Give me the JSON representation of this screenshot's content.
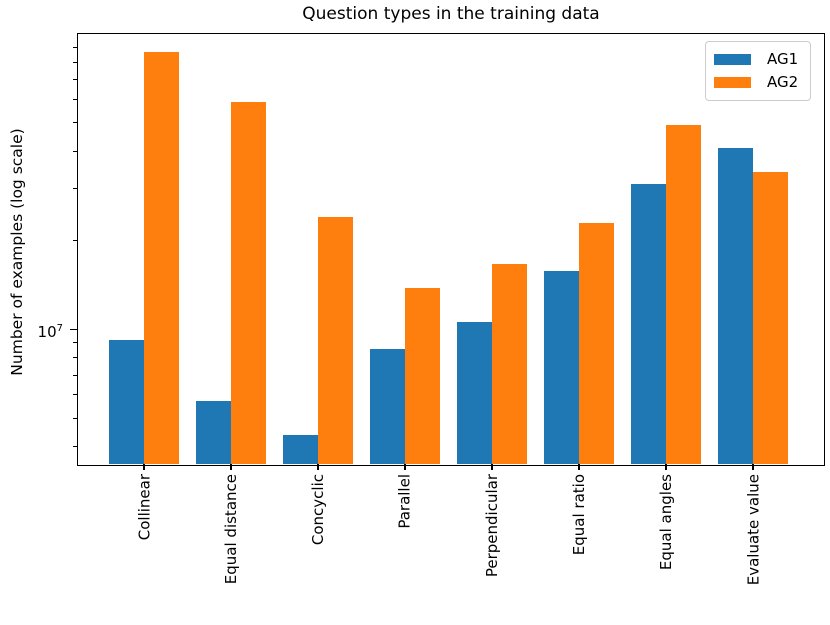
{
  "chart_data": {
    "type": "bar",
    "title": "Question types in the training data",
    "xlabel": "",
    "ylabel": "Number of examples (log scale)",
    "yscale": "log",
    "ylim": [
      3500000.0,
      100000000.0
    ],
    "grid": false,
    "legend_position": "upper right",
    "categories": [
      "Collinear",
      "Equal distance",
      "Concyclic",
      "Parallel",
      "Perpendicular",
      "Equal ratio",
      "Equal angles",
      "Evaluate value"
    ],
    "series": [
      {
        "name": "AG1",
        "color": "#1f77b4",
        "values": [
          9200000.0,
          5700000.0,
          4400000.0,
          8600000.0,
          10600000.0,
          15700000.0,
          31000000.0,
          41000000.0
        ]
      },
      {
        "name": "AG2",
        "color": "#ff7f0e",
        "values": [
          87000000.0,
          59000000.0,
          24000000.0,
          13800000.0,
          16600000.0,
          23000000.0,
          49000000.0,
          34000000.0
        ]
      }
    ]
  },
  "y_axis": {
    "scale": "log",
    "major_ticks": [
      {
        "value": 10000000.0,
        "label_base": "10",
        "label_exponent": "7"
      }
    ],
    "minor_ticks": [
      4000000.0,
      5000000.0,
      6000000.0,
      7000000.0,
      8000000.0,
      9000000.0,
      20000000.0,
      30000000.0,
      40000000.0,
      50000000.0,
      60000000.0,
      70000000.0,
      80000000.0,
      90000000.0
    ]
  }
}
